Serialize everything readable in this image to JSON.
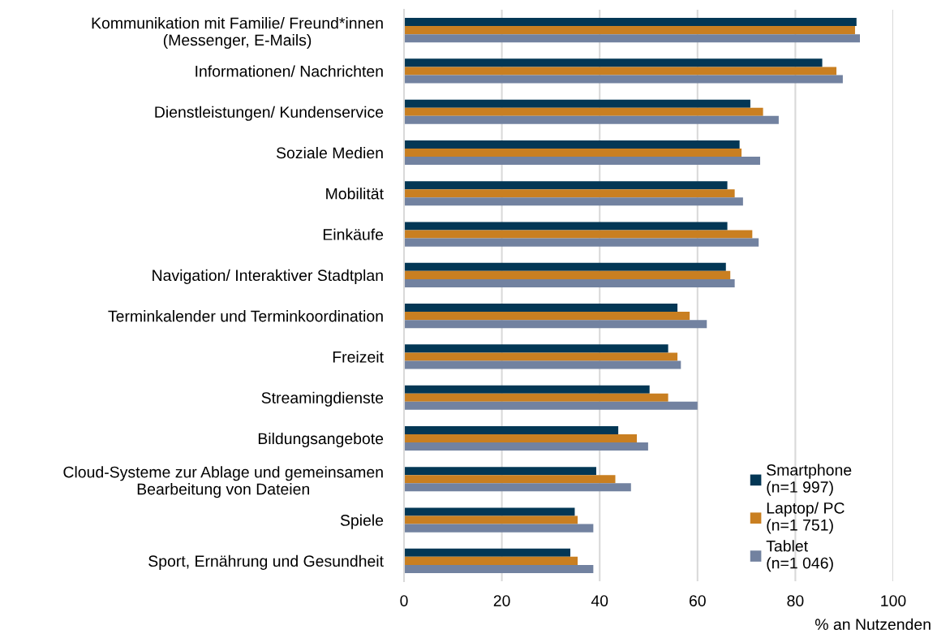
{
  "chart_data": {
    "type": "bar",
    "orientation": "horizontal",
    "xlabel": "% an Nutzenden",
    "categories": [
      "Kommunikation mit Familie/ Freund*innen\n(Messenger, E-Mails)",
      "Informationen/ Nachrichten",
      "Dienstleistungen/ Kundenservice",
      "Soziale Medien",
      "Mobilität",
      "Einkäufe",
      "Navigation/ Interaktiver Stadtplan",
      "Terminkalender und Terminkoordination",
      "Freizeit",
      "Streamingdienste",
      "Bildungsangebote",
      "Cloud-Systeme zur Ablage und gemeinsamen\nBearbeitung von Dateien",
      "Spiele",
      "Sport, Ernährung und Gesundheit"
    ],
    "series": [
      {
        "name": "Smartphone\n(n=1 997)",
        "color": "#033755",
        "values": [
          92.5,
          85.5,
          70.8,
          68.6,
          66.1,
          66.1,
          65.8,
          55.9,
          54.0,
          50.2,
          43.8,
          39.3,
          34.9,
          34.0
        ]
      },
      {
        "name": "Laptop/ PC\n(n=1 751)",
        "color": "#c97f21",
        "values": [
          92.2,
          88.4,
          73.4,
          69.0,
          67.6,
          71.2,
          66.7,
          58.4,
          55.9,
          54.0,
          47.6,
          43.2,
          35.5,
          35.5
        ]
      },
      {
        "name": "Tablet\n(n=1 046)",
        "color": "#7282a0",
        "values": [
          93.2,
          89.7,
          76.6,
          72.8,
          69.3,
          72.5,
          67.6,
          61.9,
          56.6,
          60.0,
          49.9,
          46.4,
          38.7,
          38.7
        ]
      }
    ],
    "xlim": [
      0,
      100
    ],
    "xticks": [
      0,
      20,
      40,
      60,
      80,
      100
    ],
    "grid": "x",
    "legend": "bottom right"
  }
}
